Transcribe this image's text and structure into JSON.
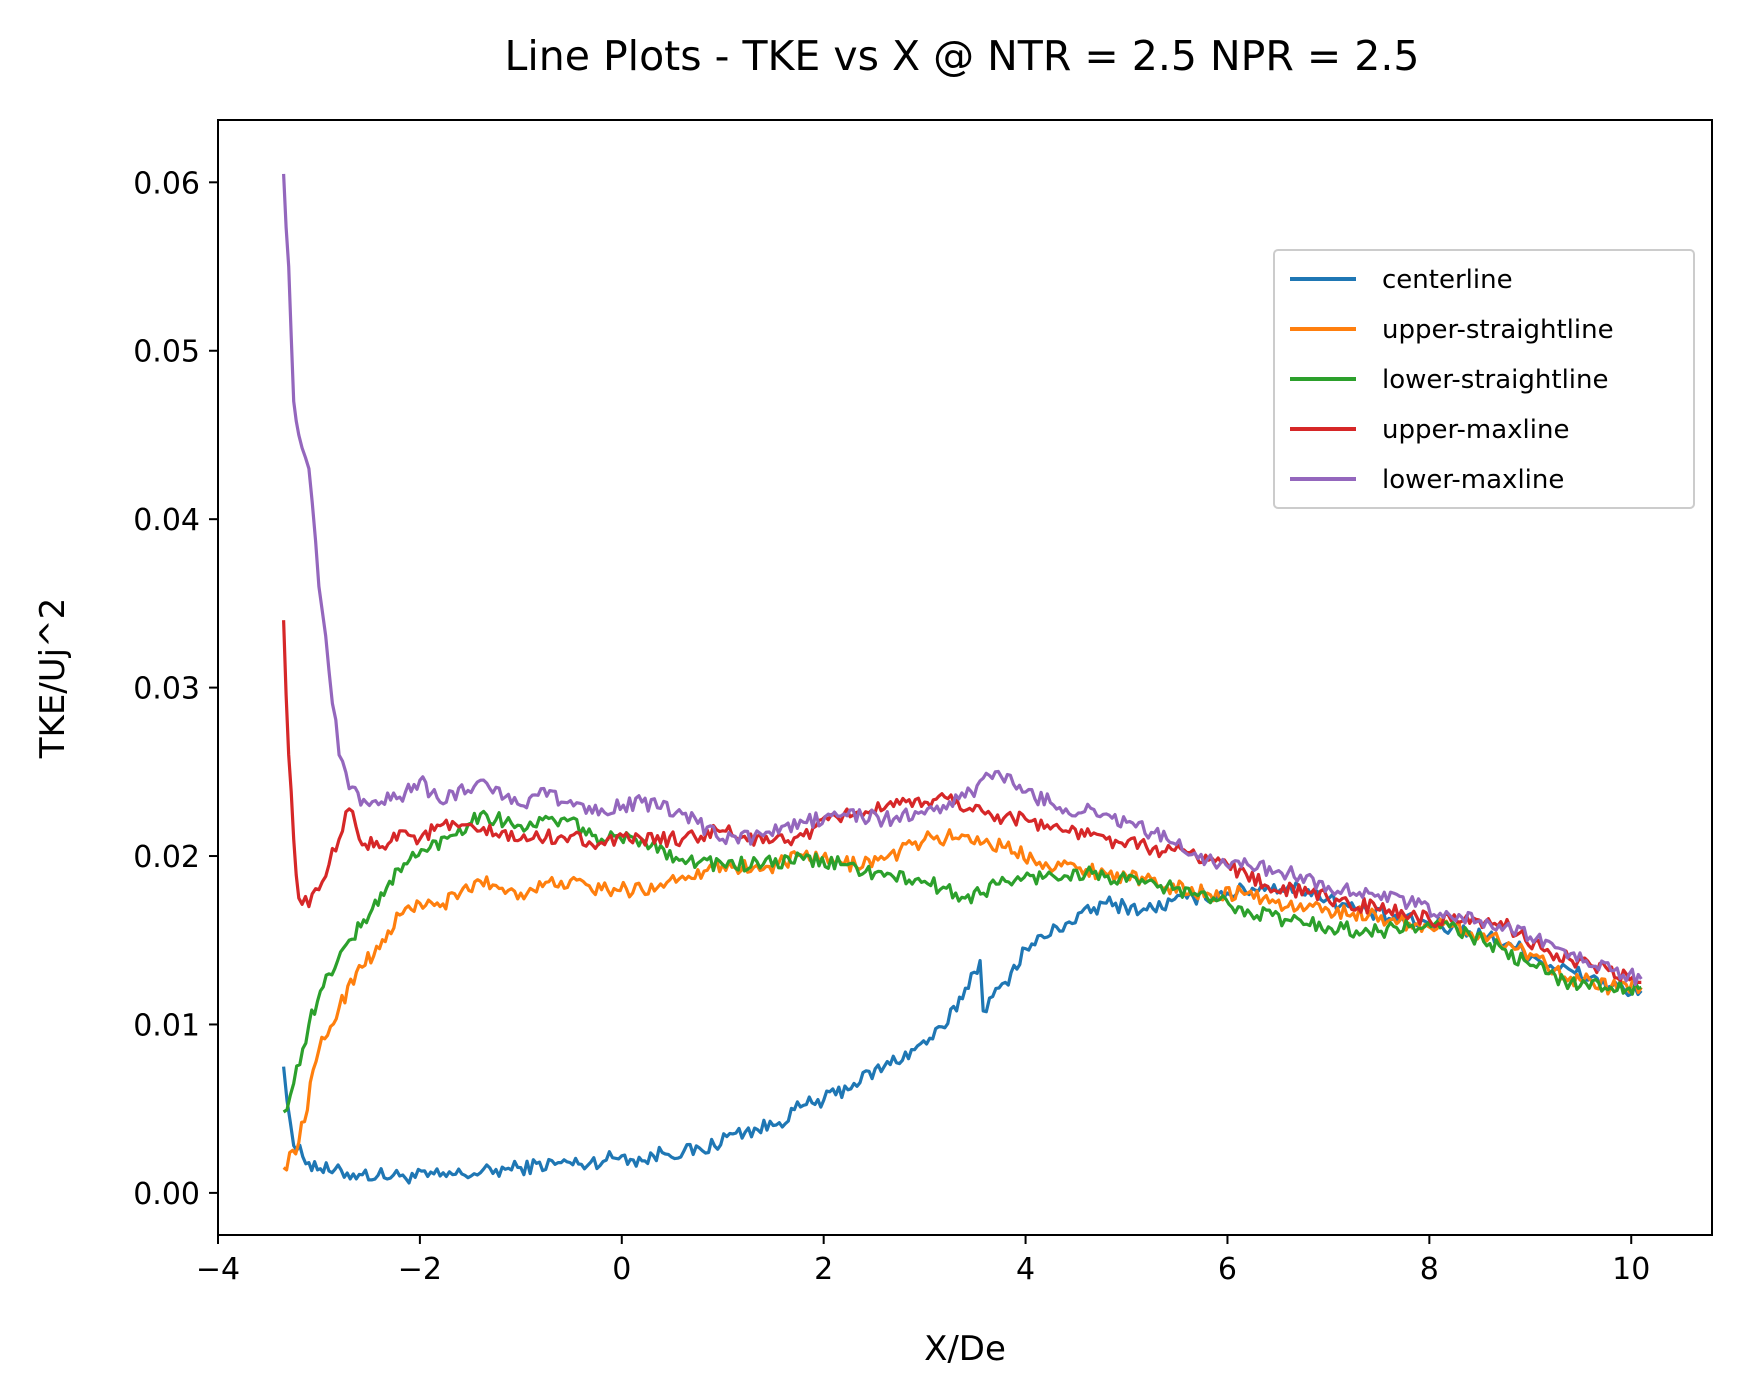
{
  "chart_data": {
    "type": "line",
    "title": "Line Plots - TKE vs X @ NTR = 2.5 NPR = 2.5",
    "xlabel": "X/De",
    "ylabel": "TKE/Uj^2",
    "xlim": [
      -4,
      10.8
    ],
    "ylim": [
      -0.0025,
      0.0637
    ],
    "xticks": [
      -4,
      -2,
      0,
      2,
      4,
      6,
      8,
      10
    ],
    "xtick_labels": [
      "−4",
      "−2",
      "0",
      "2",
      "4",
      "6",
      "8",
      "10"
    ],
    "yticks": [
      0.0,
      0.01,
      0.02,
      0.03,
      0.04,
      0.05,
      0.06
    ],
    "ytick_labels": [
      "0.00",
      "0.01",
      "0.02",
      "0.03",
      "0.04",
      "0.05",
      "0.06"
    ],
    "grid": false,
    "legend_position": "upper right",
    "series": [
      {
        "name": "centerline",
        "color": "#1f77b4",
        "x": [
          -3.35,
          -3.25,
          -3.1,
          -2.9,
          -2.6,
          -2.2,
          -1.8,
          -1.4,
          -1.0,
          -0.6,
          -0.4,
          0.0,
          0.2,
          0.4,
          0.8,
          1.1,
          1.5,
          1.8,
          2.0,
          2.3,
          2.6,
          2.9,
          3.2,
          3.55,
          3.58,
          3.8,
          4.0,
          4.4,
          4.8,
          5.2,
          5.6,
          6.0,
          6.4,
          6.8,
          7.2,
          7.6,
          8.0,
          8.4,
          8.8,
          9.2,
          9.6,
          10.0,
          10.1
        ],
        "values": [
          0.0075,
          0.0028,
          0.0018,
          0.0013,
          0.0011,
          0.001,
          0.001,
          0.0012,
          0.0015,
          0.0018,
          0.0017,
          0.0022,
          0.0019,
          0.0024,
          0.0025,
          0.0035,
          0.004,
          0.0052,
          0.0055,
          0.0065,
          0.0075,
          0.0085,
          0.0098,
          0.0138,
          0.0108,
          0.0125,
          0.0145,
          0.016,
          0.0172,
          0.0168,
          0.0175,
          0.0178,
          0.0182,
          0.018,
          0.017,
          0.0163,
          0.016,
          0.0155,
          0.0148,
          0.0135,
          0.0128,
          0.0118,
          0.012
        ]
      },
      {
        "name": "upper-straightline",
        "color": "#ff7f0e",
        "x": [
          -3.35,
          -3.2,
          -3.0,
          -2.8,
          -2.6,
          -2.4,
          -2.2,
          -2.0,
          -1.8,
          -1.6,
          -1.4,
          -1.0,
          -0.6,
          -0.2,
          0.2,
          0.6,
          1.0,
          1.4,
          1.8,
          2.2,
          2.6,
          3.0,
          3.4,
          3.8,
          4.2,
          4.6,
          5.0,
          5.4,
          5.8,
          6.2,
          6.6,
          7.0,
          7.4,
          7.8,
          8.2,
          8.6,
          9.0,
          9.4,
          9.8,
          10.1
        ],
        "values": [
          0.0015,
          0.003,
          0.0085,
          0.011,
          0.0135,
          0.0145,
          0.0165,
          0.0172,
          0.017,
          0.0178,
          0.0185,
          0.0178,
          0.0185,
          0.018,
          0.018,
          0.0188,
          0.0195,
          0.0192,
          0.02,
          0.0195,
          0.0198,
          0.021,
          0.0212,
          0.0205,
          0.0196,
          0.0192,
          0.0188,
          0.0182,
          0.0178,
          0.0178,
          0.017,
          0.0168,
          0.0165,
          0.016,
          0.0158,
          0.0152,
          0.0142,
          0.0128,
          0.0122,
          0.0122
        ]
      },
      {
        "name": "lower-straightline",
        "color": "#2ca02c",
        "x": [
          -3.35,
          -3.25,
          -3.1,
          -2.9,
          -2.7,
          -2.5,
          -2.3,
          -2.1,
          -1.9,
          -1.7,
          -1.4,
          -1.0,
          -0.6,
          -0.2,
          0.2,
          0.6,
          1.0,
          1.4,
          1.8,
          2.2,
          2.6,
          3.0,
          3.4,
          3.8,
          4.2,
          4.6,
          5.0,
          5.4,
          5.8,
          6.2,
          6.6,
          7.0,
          7.4,
          7.8,
          8.2,
          8.6,
          9.0,
          9.4,
          9.8,
          10.1
        ],
        "values": [
          0.0048,
          0.0065,
          0.01,
          0.013,
          0.015,
          0.0165,
          0.0185,
          0.0198,
          0.0205,
          0.0212,
          0.0225,
          0.0218,
          0.0222,
          0.021,
          0.021,
          0.0198,
          0.0195,
          0.0195,
          0.0198,
          0.0195,
          0.0188,
          0.0185,
          0.0175,
          0.0185,
          0.0188,
          0.019,
          0.0185,
          0.0182,
          0.0175,
          0.0168,
          0.0162,
          0.0158,
          0.0155,
          0.0158,
          0.0158,
          0.0148,
          0.0135,
          0.0125,
          0.0122,
          0.0122
        ]
      },
      {
        "name": "upper-maxline",
        "color": "#d62728",
        "x": [
          -3.35,
          -3.3,
          -3.25,
          -3.2,
          -3.1,
          -3.0,
          -2.9,
          -2.8,
          -2.7,
          -2.6,
          -2.4,
          -2.2,
          -2.0,
          -1.8,
          -1.4,
          -1.0,
          -0.6,
          -0.2,
          0.2,
          0.6,
          1.0,
          1.4,
          1.8,
          2.2,
          2.6,
          3.0,
          3.2,
          3.6,
          4.0,
          4.4,
          4.8,
          5.2,
          5.6,
          6.0,
          6.4,
          6.8,
          7.2,
          7.6,
          8.0,
          8.4,
          8.8,
          9.2,
          9.6,
          10.1
        ],
        "values": [
          0.034,
          0.026,
          0.021,
          0.0175,
          0.017,
          0.018,
          0.0195,
          0.021,
          0.0228,
          0.021,
          0.0205,
          0.0215,
          0.021,
          0.0218,
          0.0215,
          0.021,
          0.0212,
          0.0208,
          0.021,
          0.021,
          0.0215,
          0.0208,
          0.0212,
          0.0225,
          0.0228,
          0.0232,
          0.0235,
          0.0225,
          0.0222,
          0.0215,
          0.021,
          0.0205,
          0.0202,
          0.0195,
          0.0182,
          0.0178,
          0.0172,
          0.0168,
          0.0162,
          0.016,
          0.0158,
          0.0142,
          0.0135,
          0.0125
        ]
      },
      {
        "name": "lower-maxline",
        "color": "#9467bd",
        "x": [
          -3.35,
          -3.3,
          -3.25,
          -3.2,
          -3.1,
          -3.0,
          -2.9,
          -2.8,
          -2.7,
          -2.5,
          -2.2,
          -2.0,
          -1.8,
          -1.4,
          -1.0,
          -0.8,
          -0.6,
          -0.2,
          0.2,
          0.6,
          1.0,
          1.4,
          1.8,
          2.2,
          2.6,
          3.0,
          3.4,
          3.7,
          4.0,
          4.4,
          4.8,
          5.0,
          5.4,
          5.8,
          6.2,
          6.6,
          7.0,
          7.4,
          7.8,
          8.2,
          8.6,
          9.0,
          9.4,
          9.8,
          10.1
        ],
        "values": [
          0.0605,
          0.055,
          0.047,
          0.045,
          0.043,
          0.036,
          0.031,
          0.026,
          0.024,
          0.023,
          0.0235,
          0.0245,
          0.0232,
          0.0245,
          0.023,
          0.024,
          0.0232,
          0.0228,
          0.0232,
          0.0225,
          0.021,
          0.0212,
          0.022,
          0.0225,
          0.0222,
          0.0225,
          0.0235,
          0.025,
          0.0238,
          0.0228,
          0.0225,
          0.022,
          0.021,
          0.0198,
          0.0195,
          0.019,
          0.0182,
          0.0178,
          0.0172,
          0.0165,
          0.016,
          0.0152,
          0.0142,
          0.0132,
          0.0127
        ]
      }
    ]
  }
}
